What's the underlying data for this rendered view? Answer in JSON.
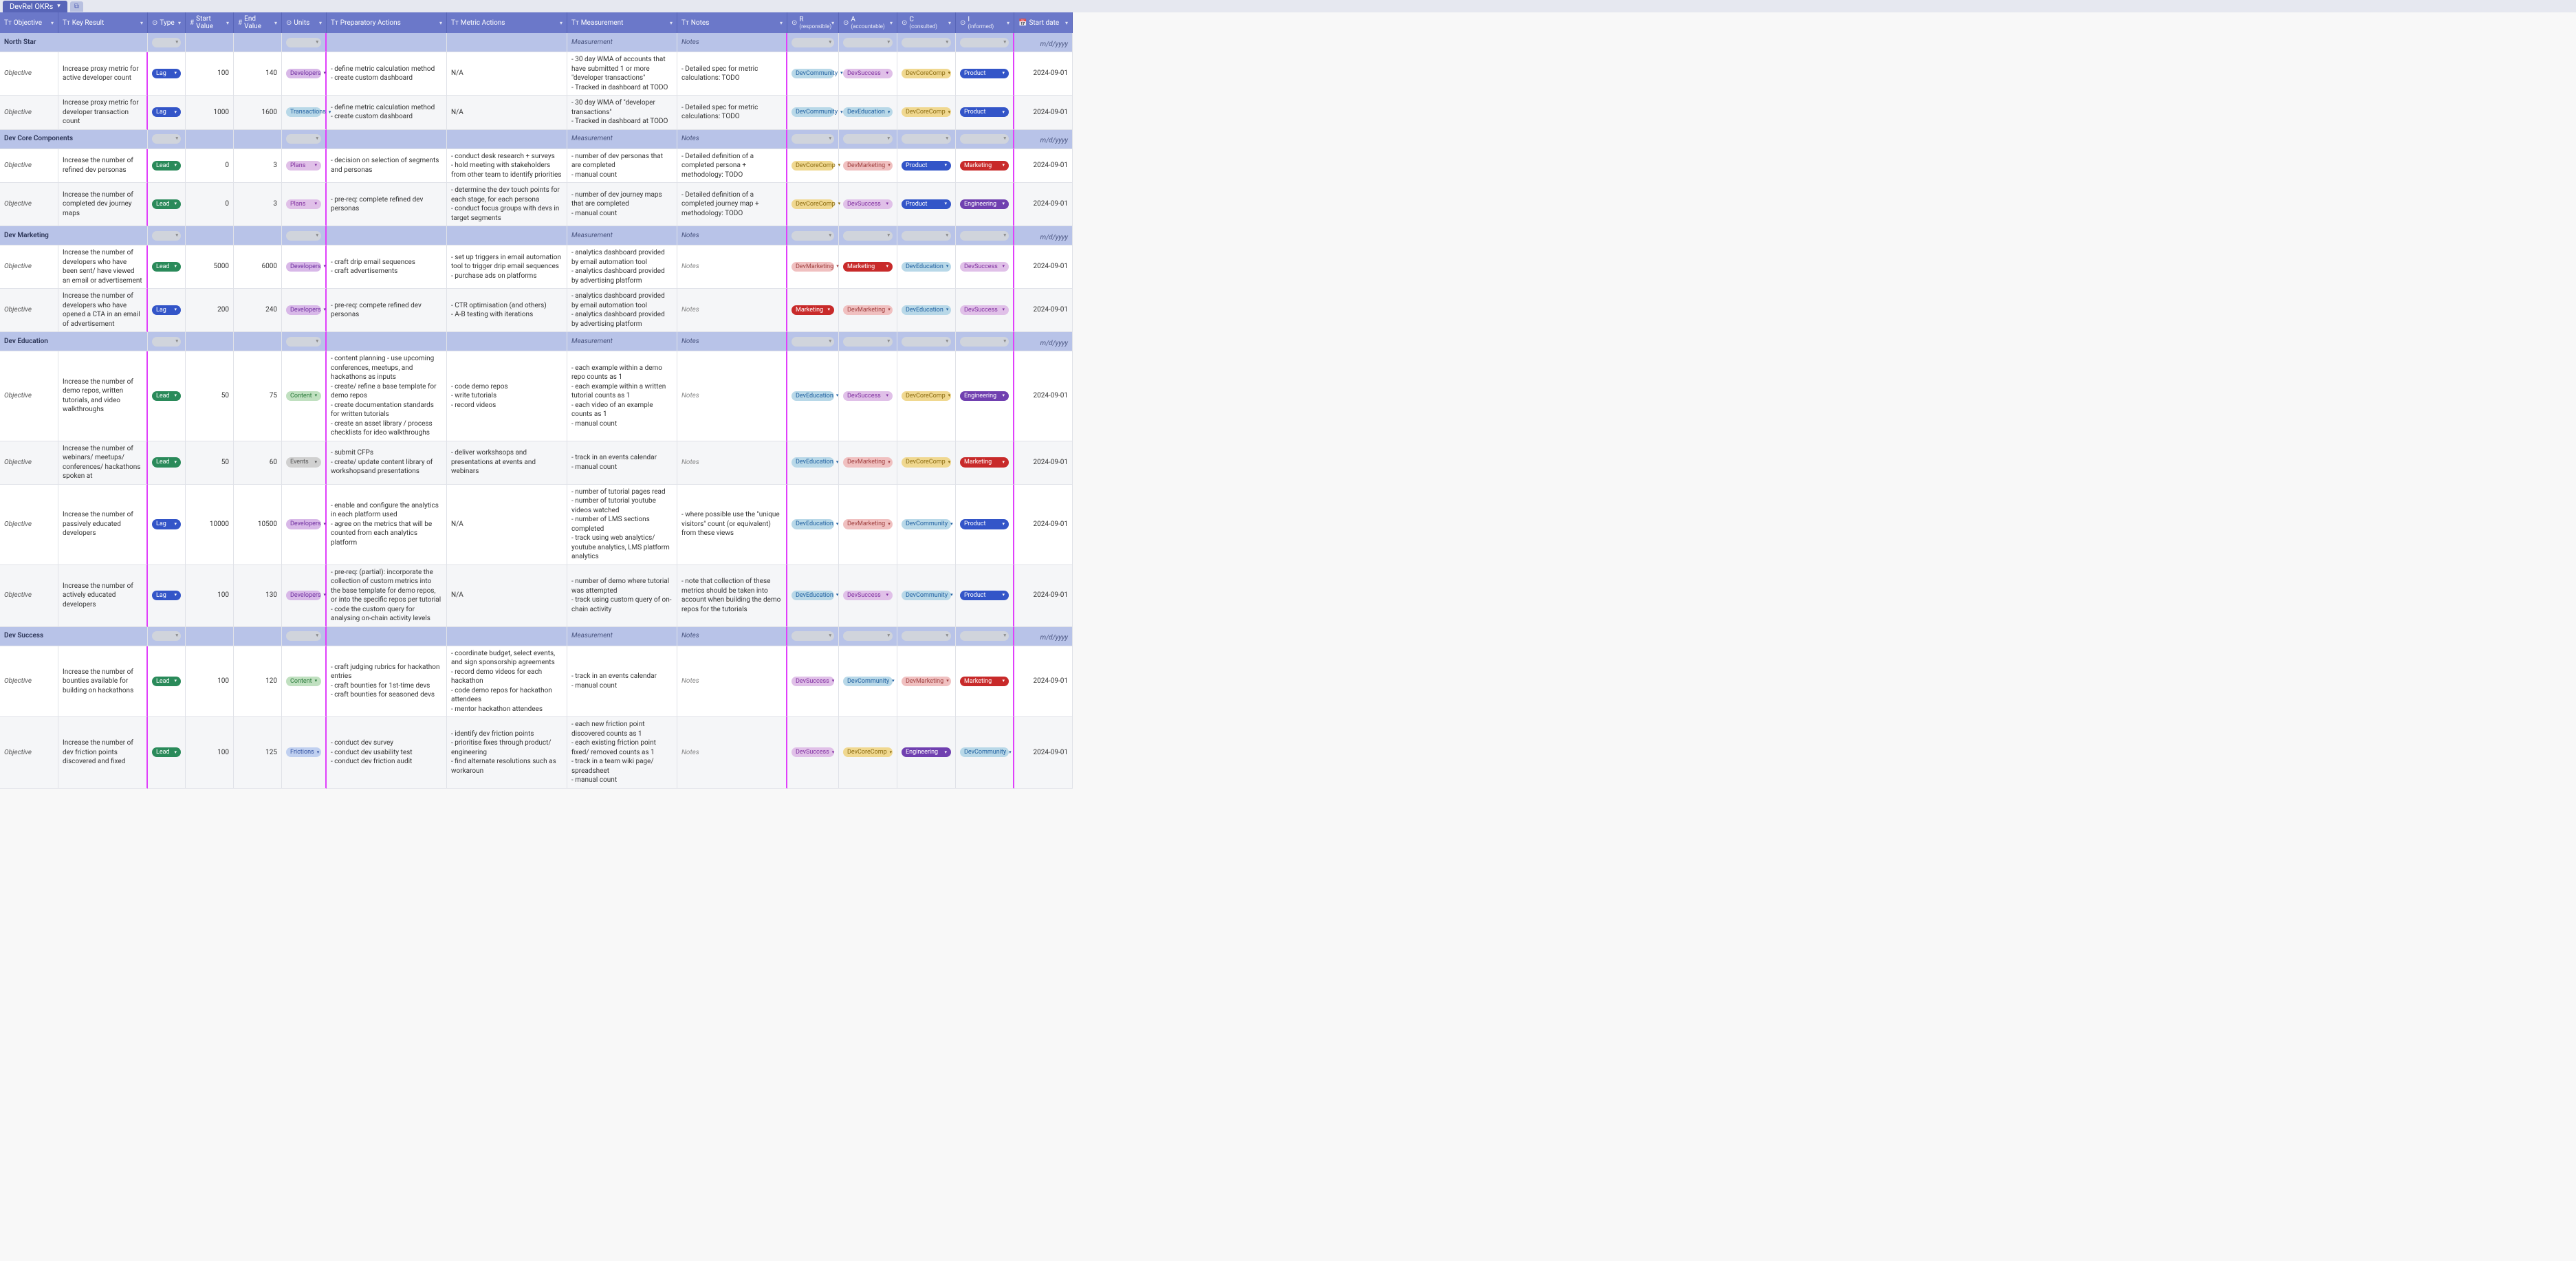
{
  "tab": {
    "title": "DevRel OKRs"
  },
  "columns": [
    {
      "label": "Objective",
      "icon": "Tт"
    },
    {
      "label": "Key Result",
      "icon": "Tт"
    },
    {
      "label": "Type",
      "icon": "⊙"
    },
    {
      "label": "Start Value",
      "icon": "#"
    },
    {
      "label": "End Value",
      "icon": "#"
    },
    {
      "label": "Units",
      "icon": "⊙"
    },
    {
      "label": "Preparatory Actions",
      "icon": "Tт"
    },
    {
      "label": "Metric Actions",
      "icon": "Tт"
    },
    {
      "label": "Measurement",
      "icon": "Tт"
    },
    {
      "label": "Notes",
      "icon": "Tт"
    },
    {
      "label": "R",
      "sub": "(responsible)",
      "icon": "⊙"
    },
    {
      "label": "A",
      "sub": "(accountable)",
      "icon": "⊙"
    },
    {
      "label": "C",
      "sub": "(consulted)",
      "icon": "⊙"
    },
    {
      "label": "I",
      "sub": "(informed)",
      "icon": "⊙"
    },
    {
      "label": "Start date",
      "icon": "📅"
    }
  ],
  "section_placeholder": {
    "measurement": "Measurement",
    "notes": "Notes",
    "date": "m/d/yyyy"
  },
  "pill_colors": {
    "Lag": "#3355c8",
    "Lead": "#2a8a5a",
    "Developers": "#d8b8e8",
    "Transactions": "#b8d8e8",
    "Plans": "#e0c0e8",
    "Content": "#c0e0c0",
    "Events": "#d0d0d0",
    "Frictions": "#c0d0f0",
    "DevCommunity": "#b8d8e8",
    "DevSuccess": "#e0c0e8",
    "DevCoreComp": "#f0d890",
    "Product": "#3355c8",
    "DevEducation": "#b8d8e8",
    "DevMarketing": "#f0c0c0",
    "Marketing": "#c82a2a",
    "Engineering": "#7040b0"
  },
  "pill_text_colors": {
    "Lag": "#fff",
    "Lead": "#fff",
    "Product": "#fff",
    "Marketing": "#fff",
    "Engineering": "#fff",
    "Developers": "#7030a0",
    "Transactions": "#2060a0",
    "Plans": "#8030a0",
    "Content": "#2a7a3a",
    "Events": "#555",
    "Frictions": "#3050a0",
    "DevCommunity": "#2060a0",
    "DevSuccess": "#8030a0",
    "DevCoreComp": "#8a6a10",
    "DevEducation": "#2060a0",
    "DevMarketing": "#a04040"
  },
  "sections": [
    {
      "title": "North Star",
      "rows": [
        {
          "obj": "Objective",
          "kr": "Increase proxy metric for active developer count",
          "type": "Lag",
          "start": "100",
          "end": "140",
          "units": "Developers",
          "prep": "- define metric calculation method\n- create custom dashboard",
          "metric": "N/A",
          "meas": "- 30 day WMA of accounts that have submitted 1 or more \"developer transactions\"\n- Tracked in dashboard at TODO",
          "notes": "- Detailed spec for metric calculations: TODO",
          "r": "DevCommunity",
          "a": "DevSuccess",
          "c": "DevCoreComp",
          "i": "Product",
          "date": "2024-09-01"
        },
        {
          "obj": "Objective",
          "kr": "Increase proxy metric for developer transaction count",
          "type": "Lag",
          "start": "1000",
          "end": "1600",
          "units": "Transactions",
          "prep": "- define metric calculation method\n- create custom dashboard",
          "metric": "N/A",
          "meas": "- 30 day WMA of \"developer transactions\"\n- Tracked in dashboard at TODO",
          "notes": "- Detailed spec for metric calculations: TODO",
          "r": "DevCommunity",
          "a": "DevEducation",
          "c": "DevCoreComp",
          "i": "Product",
          "date": "2024-09-01"
        }
      ]
    },
    {
      "title": "Dev Core Components",
      "rows": [
        {
          "obj": "Objective",
          "kr": "Increase the number of refined dev personas",
          "type": "Lead",
          "start": "0",
          "end": "3",
          "units": "Plans",
          "prep": "- decision on selection of segments and personas",
          "metric": "- conduct desk research + surveys\n- hold meeting with stakeholders from other team to identify priorities",
          "meas": "- number of dev personas that are completed\n- manual count",
          "notes": "- Detailed definition of a completed persona + methodology: TODO",
          "r": "DevCoreComp",
          "a": "DevMarketing",
          "c": "Product",
          "i": "Marketing",
          "date": "2024-09-01"
        },
        {
          "obj": "Objective",
          "kr": "Increase the number of completed dev journey maps",
          "type": "Lead",
          "start": "0",
          "end": "3",
          "units": "Plans",
          "prep": "- pre-req: complete refined dev personas",
          "metric": "- determine the dev touch points for each stage, for each persona\n- conduct focus groups with devs in target segments",
          "meas": "- number of dev journey maps that are completed\n- manual count",
          "notes": "- Detailed definition of a completed journey map + methodology: TODO",
          "r": "DevCoreComp",
          "a": "DevSuccess",
          "c": "Product",
          "i": "Engineering",
          "date": "2024-09-01"
        }
      ]
    },
    {
      "title": "Dev Marketing",
      "rows": [
        {
          "obj": "Objective",
          "kr": "Increase the number of developers who have been sent/ have viewed an email or advertisement",
          "type": "Lead",
          "start": "5000",
          "end": "6000",
          "units": "Developers",
          "prep": "- craft drip email sequences\n- craft advertisements",
          "metric": "- set up triggers in email automation tool to trigger drip email sequences\n- purchase ads on platforms",
          "meas": "- analytics dashboard provided by email automation tool\n- analytics dashboard provided by advertising platform",
          "notes": "Notes",
          "notesItalic": true,
          "r": "DevMarketing",
          "a": "Marketing",
          "c": "DevEducation",
          "i": "DevSuccess",
          "date": "2024-09-01"
        },
        {
          "obj": "Objective",
          "kr": "Increase the number of developers who have opened a CTA in an email of advertisement",
          "type": "Lag",
          "start": "200",
          "end": "240",
          "units": "Developers",
          "prep": "- pre-req: compete refined dev personas",
          "metric": "- CTR optimisation (and others)\n- A-B testing with iterations",
          "meas": "- analytics dashboard provided by email automation tool\n- analytics dashboard provided by advertising platform",
          "notes": "Notes",
          "notesItalic": true,
          "r": "Marketing",
          "a": "DevMarketing",
          "c": "DevEducation",
          "i": "DevSuccess",
          "date": "2024-09-01"
        }
      ]
    },
    {
      "title": "Dev Education",
      "rows": [
        {
          "obj": "Objective",
          "kr": "Increase the number of demo repos, written tutorials, and video walkthroughs",
          "type": "Lead",
          "start": "50",
          "end": "75",
          "units": "Content",
          "prep": "- content planning - use upcoming conferences, meetups, and hackathons as inputs\n- create/ refine a base template for demo repos\n- create documentation standards for written tutorials\n- create an asset library / process checklists for ideo walkthroughs",
          "metric": "- code demo repos\n- write tutorials\n- record videos",
          "meas": "- each example within a demo repo counts as 1\n- each example within a written tutorial counts as 1\n- each video of an example counts as 1\n- manual count",
          "notes": "Notes",
          "notesItalic": true,
          "r": "DevEducation",
          "a": "DevSuccess",
          "c": "DevCoreComp",
          "i": "Engineering",
          "date": "2024-09-01"
        },
        {
          "obj": "Objective",
          "kr": "Increase the number of webinars/ meetups/ conferences/ hackathons spoken at",
          "type": "Lead",
          "start": "50",
          "end": "60",
          "units": "Events",
          "prep": "- submit CFPs\n- create/ update content library of workshopsand presentations",
          "metric": "- deliver workshsops and presentations at events and webinars",
          "meas": "- track in an events calendar\n- manual count",
          "notes": "Notes",
          "notesItalic": true,
          "r": "DevEducation",
          "a": "DevMarketing",
          "c": "DevCoreComp",
          "i": "Marketing",
          "date": "2024-09-01"
        },
        {
          "obj": "Objective",
          "kr": "Increase the number of passively educated developers",
          "type": "Lag",
          "start": "10000",
          "end": "10500",
          "units": "Developers",
          "prep": "- enable and configure the analytics in each platform used\n- agree on the metrics that will be counted from each analytics platform",
          "metric": "N/A",
          "meas": "- number of tutorial pages read\n- number of tutorial youtube videos watched\n- number of LMS sections completed\n- track using web analytics/ youtube analytics, LMS platform analytics",
          "notes": "- where possible use the \"unique visitors\" count (or equivalent) from these views",
          "r": "DevEducation",
          "a": "DevMarketing",
          "c": "DevCommunity",
          "i": "Product",
          "date": "2024-09-01"
        },
        {
          "obj": "Objective",
          "kr": "Increase the number of actively educated developers",
          "type": "Lag",
          "start": "100",
          "end": "130",
          "units": "Developers",
          "prep": "- pre-req: (partial): incorporate the collection of custom metrics into the base template for demo repos, or into the specific repos per tutorial\n- code the custom query for analysing on-chain activity levels",
          "metric": "N/A",
          "meas": "- number of demo where tutorial was attempted\n- track using custom query of on-chain activity",
          "notes": "- note that collection of these metrics should be taken into account when building the demo repos for the tutorials",
          "r": "DevEducation",
          "a": "DevSuccess",
          "c": "DevCommunity",
          "i": "Product",
          "date": "2024-09-01"
        }
      ]
    },
    {
      "title": "Dev Success",
      "rows": [
        {
          "obj": "Objective",
          "kr": "Increase the number of bounties available for building on hackathons",
          "type": "Lead",
          "start": "100",
          "end": "120",
          "units": "Content",
          "prep": "- craft judging rubrics for hackathon entries\n- craft bounties for 1st-time devs\n- craft bounties for seasoned devs",
          "metric": "- coordinate budget, select events, and sign sponsorship agreements\n- record demo videos for each hackathon\n- code demo repos for hackathon attendees\n- mentor hackathon attendees",
          "meas": "- track in an events calendar\n- manual count",
          "notes": "Notes",
          "notesItalic": true,
          "r": "DevSuccess",
          "a": "DevCommunity",
          "c": "DevMarketing",
          "i": "Marketing",
          "date": "2024-09-01"
        },
        {
          "obj": "Objective",
          "kr": "Increase the number of dev friction points discovered and fixed",
          "type": "Lead",
          "start": "100",
          "end": "125",
          "units": "Frictions",
          "prep": "- conduct dev survey\n- conduct dev usability test\n- conduct dev friction audit",
          "metric": "- identify dev friction points\n- prioritise fixes through product/ engineering\n- find alternate resolutions such as workaroun",
          "meas": "- each new friction point discovered counts as 1\n- each existing friction point fixed/ removed counts as 1\n- track in a team wiki page/ spreadsheet\n- manual count",
          "notes": "Notes",
          "notesItalic": true,
          "r": "DevSuccess",
          "a": "DevCoreComp",
          "c": "Engineering",
          "i": "DevCommunity",
          "date": "2024-09-01"
        }
      ]
    }
  ]
}
